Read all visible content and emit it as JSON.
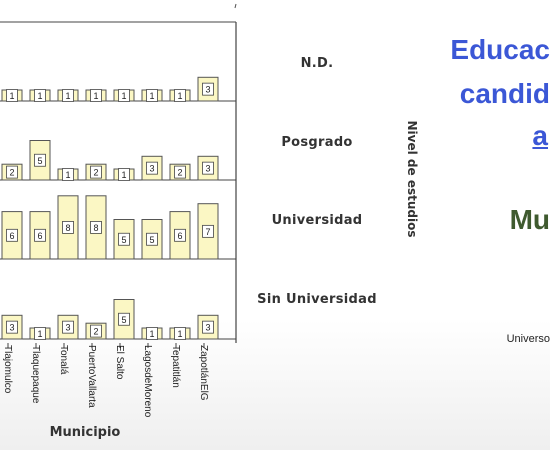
{
  "slide": {
    "title_lines": [
      "Educac",
      "candid",
      "a"
    ],
    "subtitle": "Mu",
    "source_fragment": "Universo"
  },
  "chart_data": {
    "type": "bar",
    "xlabel": "Municipio",
    "ylabel": "Nivel de estudios",
    "rows": [
      "N.D.",
      "Posgrado",
      "Universidad",
      "Sin Universidad"
    ],
    "categories": [
      "Tlajomulco",
      "Tlaquepaque",
      "Tonalá",
      "PuertoVallarta",
      "El Salto",
      "LagosdeMoreno",
      "Tepatitlán",
      "ZapotlánElG"
    ],
    "series": [
      {
        "row": "N.D.",
        "values": [
          1,
          1,
          1,
          1,
          1,
          1,
          1,
          3
        ]
      },
      {
        "row": "Posgrado",
        "values": [
          2,
          5,
          1,
          2,
          1,
          3,
          2,
          3
        ]
      },
      {
        "row": "Universidad",
        "values": [
          6,
          6,
          8,
          8,
          5,
          5,
          6,
          7
        ]
      },
      {
        "row": "Sin Universidad",
        "values": [
          3,
          1,
          3,
          2,
          5,
          1,
          1,
          3
        ]
      }
    ],
    "colors": {
      "bar_fill": "#fbf7c4",
      "bar_stroke": "#555555",
      "grid": "#444444"
    }
  }
}
